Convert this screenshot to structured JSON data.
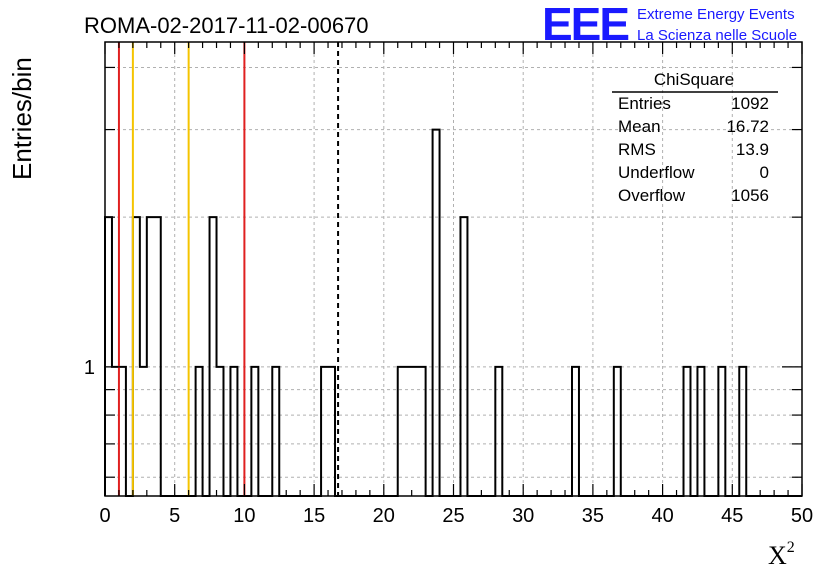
{
  "title": "ROMA-02-2017-11-02-00670",
  "logo": {
    "mark": "EEE",
    "line1": "Extreme Energy Events",
    "line2": "La Scienza nelle Scuole",
    "color": "#1a1aff"
  },
  "stats": {
    "title": "ChiSquare",
    "rows": [
      {
        "label": "Entries",
        "value": "1092"
      },
      {
        "label": "Mean",
        "value": "16.72"
      },
      {
        "label": "RMS",
        "value": "13.9"
      },
      {
        "label": "Underflow",
        "value": "0"
      },
      {
        "label": "Overflow",
        "value": "1056"
      }
    ]
  },
  "chart_data": {
    "type": "bar",
    "histogram": true,
    "bin_width": 0.5,
    "xlim": [
      0,
      50
    ],
    "ylim": [
      0.55,
      4.5
    ],
    "yscale": "log",
    "xlabel": "X",
    "xlabel_sup": "2",
    "ylabel": "Entries/bin",
    "x_ticks": [
      0,
      5,
      10,
      15,
      20,
      25,
      30,
      35,
      40,
      45,
      50
    ],
    "y_ticks": [
      1
    ],
    "grid": true,
    "bins": [
      {
        "x": 0.0,
        "value": 2
      },
      {
        "x": 0.5,
        "value": 1
      },
      {
        "x": 1.0,
        "value": 1
      },
      {
        "x": 2.0,
        "value": 2
      },
      {
        "x": 2.5,
        "value": 1
      },
      {
        "x": 3.0,
        "value": 2
      },
      {
        "x": 3.5,
        "value": 2
      },
      {
        "x": 6.5,
        "value": 1
      },
      {
        "x": 7.5,
        "value": 2
      },
      {
        "x": 8.0,
        "value": 1
      },
      {
        "x": 9.0,
        "value": 1
      },
      {
        "x": 10.5,
        "value": 1
      },
      {
        "x": 12.0,
        "value": 1
      },
      {
        "x": 15.5,
        "value": 1
      },
      {
        "x": 16.0,
        "value": 1
      },
      {
        "x": 21.0,
        "value": 1
      },
      {
        "x": 21.5,
        "value": 1
      },
      {
        "x": 22.0,
        "value": 1
      },
      {
        "x": 22.5,
        "value": 1
      },
      {
        "x": 23.5,
        "value": 3
      },
      {
        "x": 25.5,
        "value": 2
      },
      {
        "x": 28.0,
        "value": 1
      },
      {
        "x": 33.5,
        "value": 1
      },
      {
        "x": 36.5,
        "value": 1
      },
      {
        "x": 41.5,
        "value": 1
      },
      {
        "x": 42.5,
        "value": 1
      },
      {
        "x": 44.0,
        "value": 1
      },
      {
        "x": 45.5,
        "value": 1
      }
    ],
    "reference_lines": [
      {
        "x": 1,
        "color": "#e02020",
        "style": "solid"
      },
      {
        "x": 2,
        "color": "#f5c400",
        "style": "solid"
      },
      {
        "x": 6,
        "color": "#f5c400",
        "style": "solid"
      },
      {
        "x": 10,
        "color": "#e02020",
        "style": "solid"
      },
      {
        "x": 16.72,
        "color": "#000000",
        "style": "dashed"
      }
    ]
  }
}
